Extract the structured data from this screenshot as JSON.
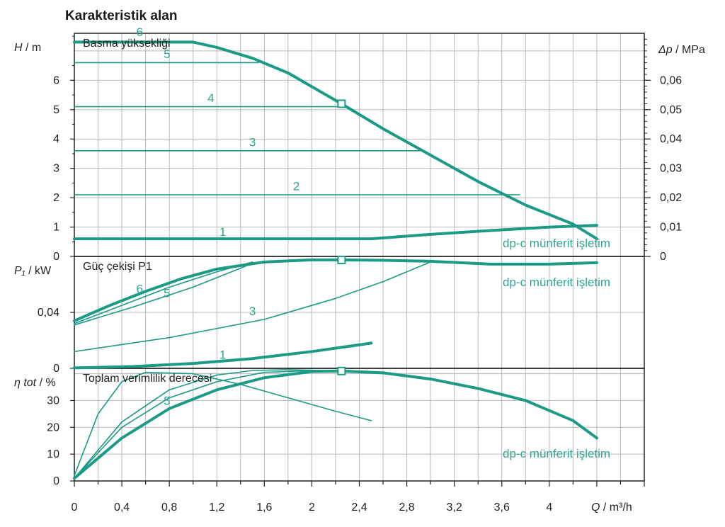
{
  "title": "Karakteristik alan",
  "colors": {
    "curve": "#1b9a85",
    "label": "#2aa892",
    "grid": "#b9b9b9",
    "axis": "#222222"
  },
  "chart_data": [
    {
      "type": "line",
      "panel": "head",
      "title": "Basma yüksekliği",
      "ylabel": "H / m",
      "y2label": "Δp / MPa",
      "xlabel": "Q / m³/h",
      "x_ticks": [
        "0",
        "0,4",
        "0,8",
        "1,2",
        "1,6",
        "2",
        "2,4",
        "2,8",
        "3,2",
        "3,6",
        "4"
      ],
      "y_ticks": [
        "0",
        "1",
        "2",
        "3",
        "4",
        "5",
        "6"
      ],
      "y2_ticks": [
        "0",
        "0,01",
        "0,02",
        "0,03",
        "0,04",
        "0,05",
        "0,06"
      ],
      "xlim": [
        0,
        4.8
      ],
      "ylim": [
        0,
        7.6
      ],
      "annotation": "dp-c münferit işletim",
      "series": [
        {
          "name": "6",
          "thick": true,
          "x": [
            0,
            1.0,
            1.2,
            1.5,
            1.8,
            2.25,
            2.6,
            3.0,
            3.4,
            3.8,
            4.2,
            4.4
          ],
          "y": [
            7.3,
            7.3,
            7.12,
            6.75,
            6.25,
            5.2,
            4.35,
            3.45,
            2.55,
            1.75,
            1.1,
            0.6
          ]
        },
        {
          "name": "5",
          "thick": false,
          "x": [
            0,
            1.55
          ],
          "y": [
            6.6,
            6.6
          ]
        },
        {
          "name": "4",
          "thick": false,
          "x": [
            0,
            2.25
          ],
          "y": [
            5.1,
            5.1
          ]
        },
        {
          "name": "3",
          "thick": false,
          "x": [
            0,
            2.95
          ],
          "y": [
            3.6,
            3.6
          ]
        },
        {
          "name": "2",
          "thick": false,
          "x": [
            0,
            3.75
          ],
          "y": [
            2.1,
            2.1
          ]
        },
        {
          "name": "1",
          "thick": true,
          "x": [
            0,
            2.5,
            3.0,
            3.5,
            4.0,
            4.4
          ],
          "y": [
            0.6,
            0.6,
            0.75,
            0.88,
            1.0,
            1.06
          ]
        }
      ],
      "series_labels": [
        {
          "text": "6",
          "x": 0.55,
          "y": 7.65
        },
        {
          "text": "5",
          "x": 0.78,
          "y": 6.9
        },
        {
          "text": "4",
          "x": 1.15,
          "y": 5.4
        },
        {
          "text": "3",
          "x": 1.5,
          "y": 3.9
        },
        {
          "text": "2",
          "x": 1.87,
          "y": 2.4
        },
        {
          "text": "1",
          "x": 1.25,
          "y": 0.85
        }
      ],
      "marker": {
        "x": 2.25,
        "y": 5.2
      }
    },
    {
      "type": "line",
      "panel": "power",
      "title": "Güç çekişi P1",
      "ylabel": "P₁ / kW",
      "y_ticks": [
        "0",
        "0,04"
      ],
      "ylim": [
        0,
        0.08
      ],
      "annotation": "dp-c münferit işletim",
      "series": [
        {
          "name": "6",
          "thick": true,
          "x": [
            0,
            0.3,
            0.6,
            0.9,
            1.2,
            1.6,
            2.0,
            2.25,
            2.6,
            3.0,
            3.5,
            4.0,
            4.4
          ],
          "y": [
            0.034,
            0.045,
            0.055,
            0.064,
            0.071,
            0.076,
            0.0775,
            0.0775,
            0.0772,
            0.0765,
            0.0745,
            0.0745,
            0.0755
          ]
        },
        {
          "name": "5",
          "thick": false,
          "x": [
            0,
            0.4,
            0.8,
            1.2,
            1.5
          ],
          "y": [
            0.032,
            0.045,
            0.058,
            0.069,
            0.076
          ]
        },
        {
          "name": "4",
          "thick": false,
          "x": [
            0,
            0.5,
            1.0,
            1.5
          ],
          "y": [
            0.031,
            0.044,
            0.058,
            0.075
          ]
        },
        {
          "name": "3",
          "thick": false,
          "x": [
            0,
            0.8,
            1.6,
            2.2,
            2.6,
            3.0
          ],
          "y": [
            0.012,
            0.022,
            0.035,
            0.05,
            0.062,
            0.076
          ]
        },
        {
          "name": "1",
          "thick": true,
          "x": [
            0,
            0.5,
            1.0,
            1.5,
            2.0,
            2.5
          ],
          "y": [
            0.0003,
            0.0013,
            0.0035,
            0.007,
            0.012,
            0.018
          ]
        }
      ],
      "series_labels": [
        {
          "text": "6",
          "x": 0.55,
          "y": 0.057
        },
        {
          "text": "5",
          "x": 0.78,
          "y": 0.054
        },
        {
          "text": "3",
          "x": 1.5,
          "y": 0.041
        },
        {
          "text": "1",
          "x": 1.25,
          "y": 0.01
        }
      ],
      "marker": {
        "x": 2.25,
        "y": 0.0775
      }
    },
    {
      "type": "line",
      "panel": "efficiency",
      "title": "Toplam verimlilik derecesi",
      "ylabel": "η tot / %",
      "y_ticks": [
        "0",
        "10",
        "20",
        "30"
      ],
      "ylim": [
        0,
        42
      ],
      "annotation": "dp-c münferit işletim",
      "series": [
        {
          "name": "6",
          "thick": true,
          "x": [
            0,
            0.4,
            0.8,
            1.2,
            1.6,
            2.0,
            2.25,
            2.6,
            3.0,
            3.4,
            3.8,
            4.2,
            4.4
          ],
          "y": [
            1,
            16,
            27,
            34,
            38.5,
            40.8,
            41,
            40.3,
            38,
            34.5,
            30,
            22.5,
            16
          ]
        },
        {
          "name": "5",
          "thick": false,
          "x": [
            0,
            0.4,
            0.8,
            1.2,
            1.5,
            1.8,
            2.1
          ],
          "y": [
            1,
            22,
            34,
            39.5,
            41.2,
            41.5,
            41.2
          ]
        },
        {
          "name": "4",
          "thick": false,
          "x": [
            0,
            0.4,
            0.8,
            1.2,
            1.6,
            2.0,
            2.25
          ],
          "y": [
            1,
            20,
            31,
            37,
            40.5,
            41.2,
            41
          ]
        },
        {
          "name": "1",
          "thick": false,
          "x": [
            0,
            0.2,
            0.4,
            0.6,
            1.0,
            1.4,
            1.8,
            2.2,
            2.5
          ],
          "y": [
            2,
            25,
            37,
            40.5,
            40,
            36,
            31,
            26,
            22.5
          ]
        }
      ],
      "series_labels": [
        {
          "text": "5",
          "x": 0.78,
          "y": 30
        }
      ],
      "marker": {
        "x": 2.25,
        "y": 41
      }
    }
  ]
}
